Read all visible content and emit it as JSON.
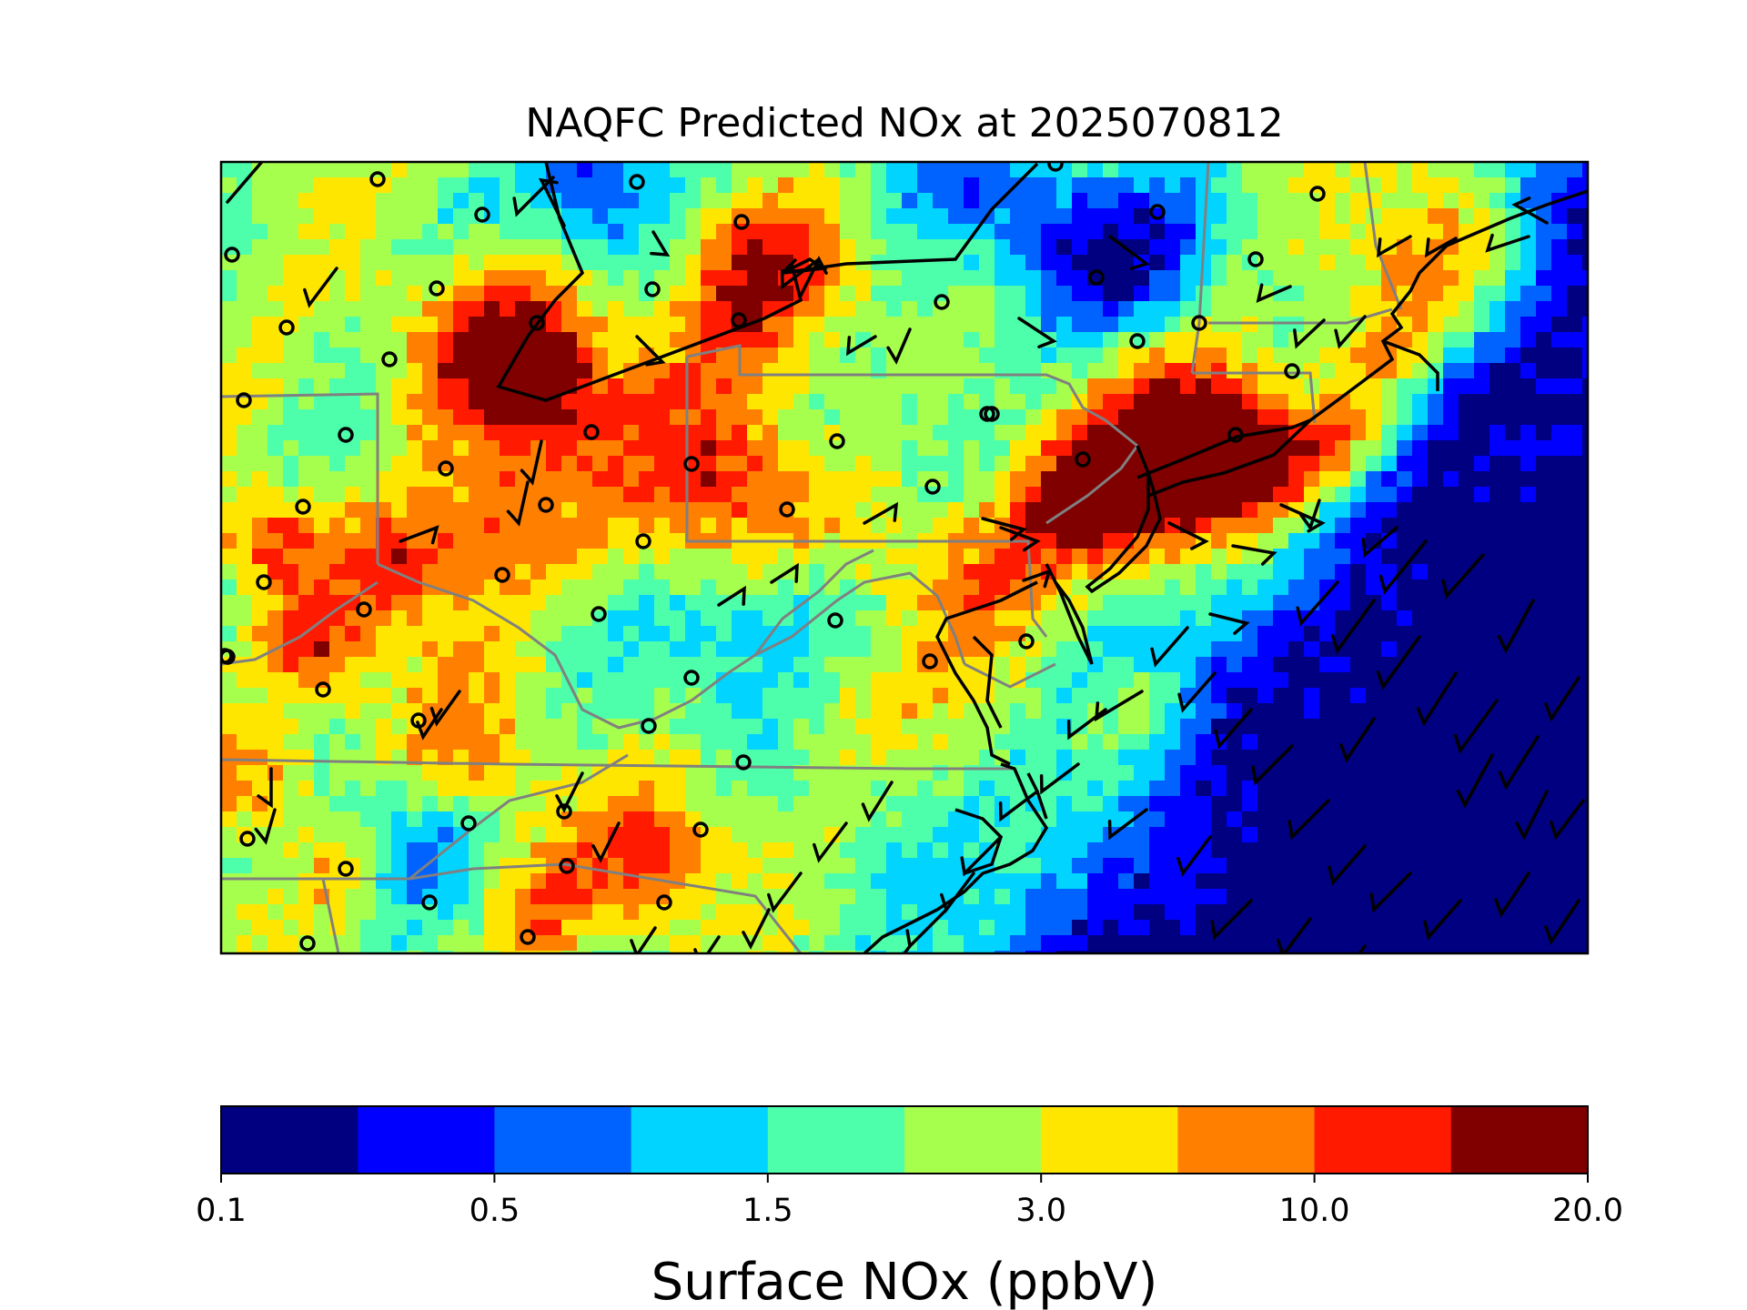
{
  "map": {
    "title": "NAQFC Predicted NOx at 2025070812",
    "colorbar": {
      "label": "Surface NOx (ppbV)",
      "colors": [
        "#000080",
        "#0000ff",
        "#0063ff",
        "#00d4ff",
        "#4dffaa",
        "#a7ff4d",
        "#ffe600",
        "#ff7f00",
        "#ff1a00",
        "#800000"
      ],
      "tick_labels": [
        "0.1",
        "0.5",
        "1.5",
        "3.0",
        "10.0",
        "20.0"
      ]
    },
    "symbols": {
      "calm_marker": "open-circle",
      "wind_marker": "wind-barb"
    }
  }
}
